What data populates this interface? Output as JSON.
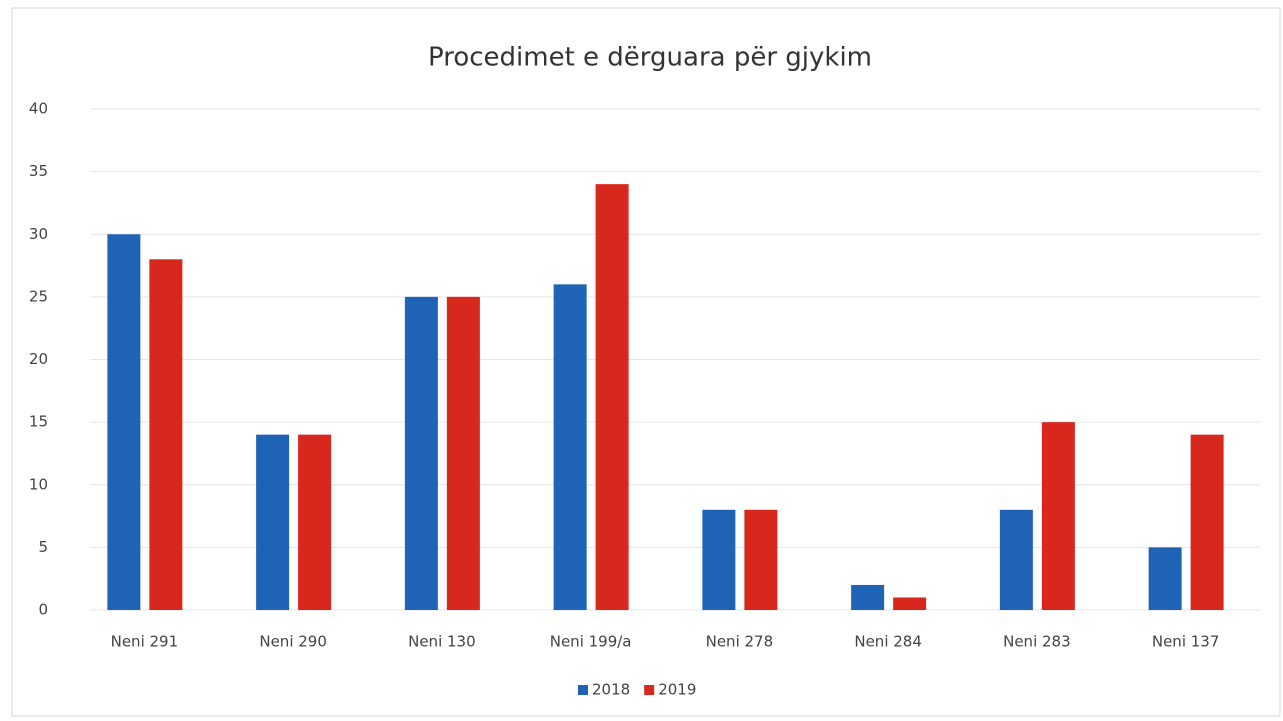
{
  "chart_data": {
    "type": "bar",
    "title": "Procedimet e dërguara për gjykim",
    "categories": [
      "Neni 291",
      "Neni 290",
      "Neni 130",
      "Neni 199/a",
      "Neni 278",
      "Neni 284",
      "Neni 283",
      "Neni 137"
    ],
    "series": [
      {
        "name": "2018",
        "color": "#1f63b7",
        "values": [
          30,
          14,
          25,
          26,
          8,
          2,
          8,
          5
        ]
      },
      {
        "name": "2019",
        "color": "#d8271d",
        "values": [
          28,
          14,
          25,
          34,
          8,
          1,
          15,
          14
        ]
      }
    ],
    "ylim": [
      0,
      40
    ],
    "yticks": [
      0,
      5,
      10,
      15,
      20,
      25,
      30,
      35,
      40
    ],
    "grid": true,
    "legend": "bottom"
  }
}
